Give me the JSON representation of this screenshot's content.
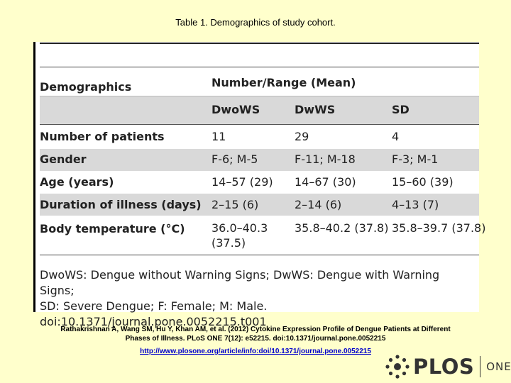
{
  "slide_title": "Table 1. Demographics of study cohort.",
  "table": {
    "header_left": "Demographics",
    "header_group": "Number/Range (Mean)",
    "columns": [
      "DwoWS",
      "DwWS",
      "SD"
    ],
    "rows": [
      {
        "label": "Number of patients",
        "cells": [
          "11",
          "29",
          "4"
        ]
      },
      {
        "label": "Gender",
        "cells": [
          "F-6; M-5",
          "F-11; M-18",
          "F-3; M-1"
        ]
      },
      {
        "label": "Age (years)",
        "cells": [
          "14–57 (29)",
          "14–67 (30)",
          "15–60 (39)"
        ]
      },
      {
        "label": "Duration of illness (days)",
        "cells": [
          "2–15 (6)",
          "2–14 (6)",
          "4–13 (7)"
        ]
      },
      {
        "label": "Body temperature (°C)",
        "cells": [
          "36.0–40.3",
          "35.8–40.2 (37.8)",
          "35.8–39.7 (37.8)"
        ],
        "cell0_line2": "(37.5)"
      }
    ],
    "footnote_line1": "DwoWS: Dengue without Warning Signs; DwWS: Dengue with Warning Signs;",
    "footnote_line2": "SD: Severe Dengue; F: Female; M: Male.",
    "footnote_line3": "doi:10.1371/journal.pone.0052215.t001"
  },
  "citation_line1": "Rathakrishnan A, Wang SM, Hu Y, Khan AM, et al. (2012) Cytokine Expression Profile of Dengue Patients at Different",
  "citation_line2": "Phases of Illness. PLoS ONE 7(12): e52215. doi:10.1371/journal.pone.0052215",
  "url": "http://www.plosone.org/article/info:doi/10.1371/journal.pone.0052215",
  "logo": {
    "name": "PLOS",
    "suffix": "ONE",
    "icon": "plos-logo-icon"
  }
}
